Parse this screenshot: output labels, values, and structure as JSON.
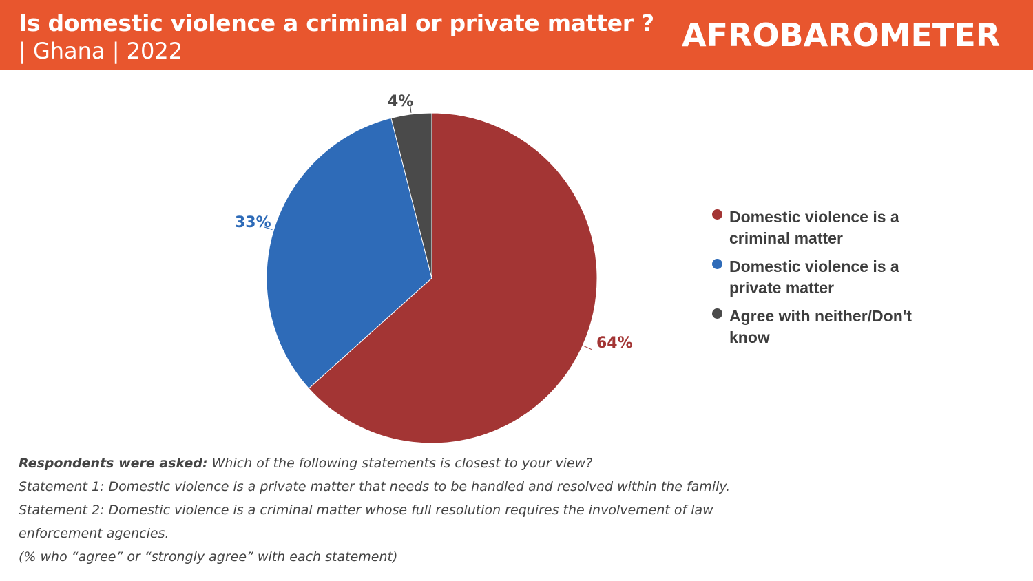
{
  "header": {
    "title": "Is domestic violence a criminal or private matter ?",
    "subtitle": "| Ghana  | 2022",
    "logo_text": "AFROBAROMETER"
  },
  "chart_data": {
    "type": "pie",
    "title": "Is domestic violence a criminal or private matter ?",
    "start_angle": "top, clockwise",
    "legend_position": "right",
    "slices": [
      {
        "name": "Domestic violence is a criminal matter",
        "value": 64,
        "label": "64%",
        "color": "#A33534"
      },
      {
        "name": "Domestic violence is a private matter",
        "value": 33,
        "label": "33%",
        "color": "#2E6BB8"
      },
      {
        "name": "Agree with neither/Don't know",
        "value": 4,
        "label": "4%",
        "color": "#4A4A4A"
      }
    ]
  },
  "notes": {
    "asked_label": "Respondents were asked:",
    "asked_text": " Which of the following statements is closest to your view?",
    "statement1": "Statement 1: Domestic violence is a private matter that needs to be handled and resolved within the family.",
    "statement2": "Statement 2: Domestic violence is a criminal matter whose full resolution requires the involvement of law enforcement agencies.",
    "footnote": "(% who “agree” or “strongly agree” with each statement)"
  }
}
